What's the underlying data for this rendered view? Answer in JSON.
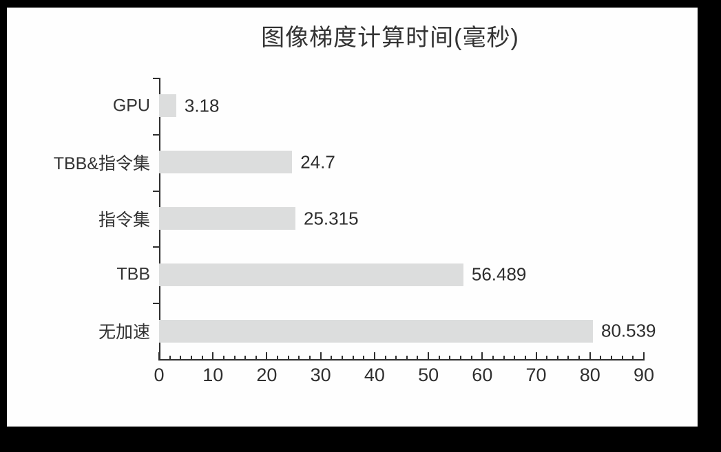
{
  "chart_data": {
    "type": "bar",
    "orientation": "horizontal",
    "title": "图像梯度计算时间(毫秒)",
    "categories": [
      "GPU",
      "TBB&指令集",
      "指令集",
      "TBB",
      "无加速"
    ],
    "values": [
      3.18,
      24.7,
      25.315,
      56.489,
      80.539
    ],
    "value_labels": [
      "3.18",
      "24.7",
      "25.315",
      "56.489",
      "80.539"
    ],
    "xlim": [
      0,
      90
    ],
    "x_major_tick_step": 10,
    "x_minor_tick_step": 2,
    "x_tick_labels": [
      "0",
      "10",
      "20",
      "30",
      "40",
      "50",
      "60",
      "70",
      "80",
      "90"
    ],
    "xlabel": "",
    "ylabel": "",
    "grid": false,
    "legend": "none",
    "bar_color": "#dcdddd",
    "axis_color": "#2e2e2e",
    "text_color": "#2f2f2f",
    "background_color": "#fefefe",
    "frame_color": "#000000"
  }
}
